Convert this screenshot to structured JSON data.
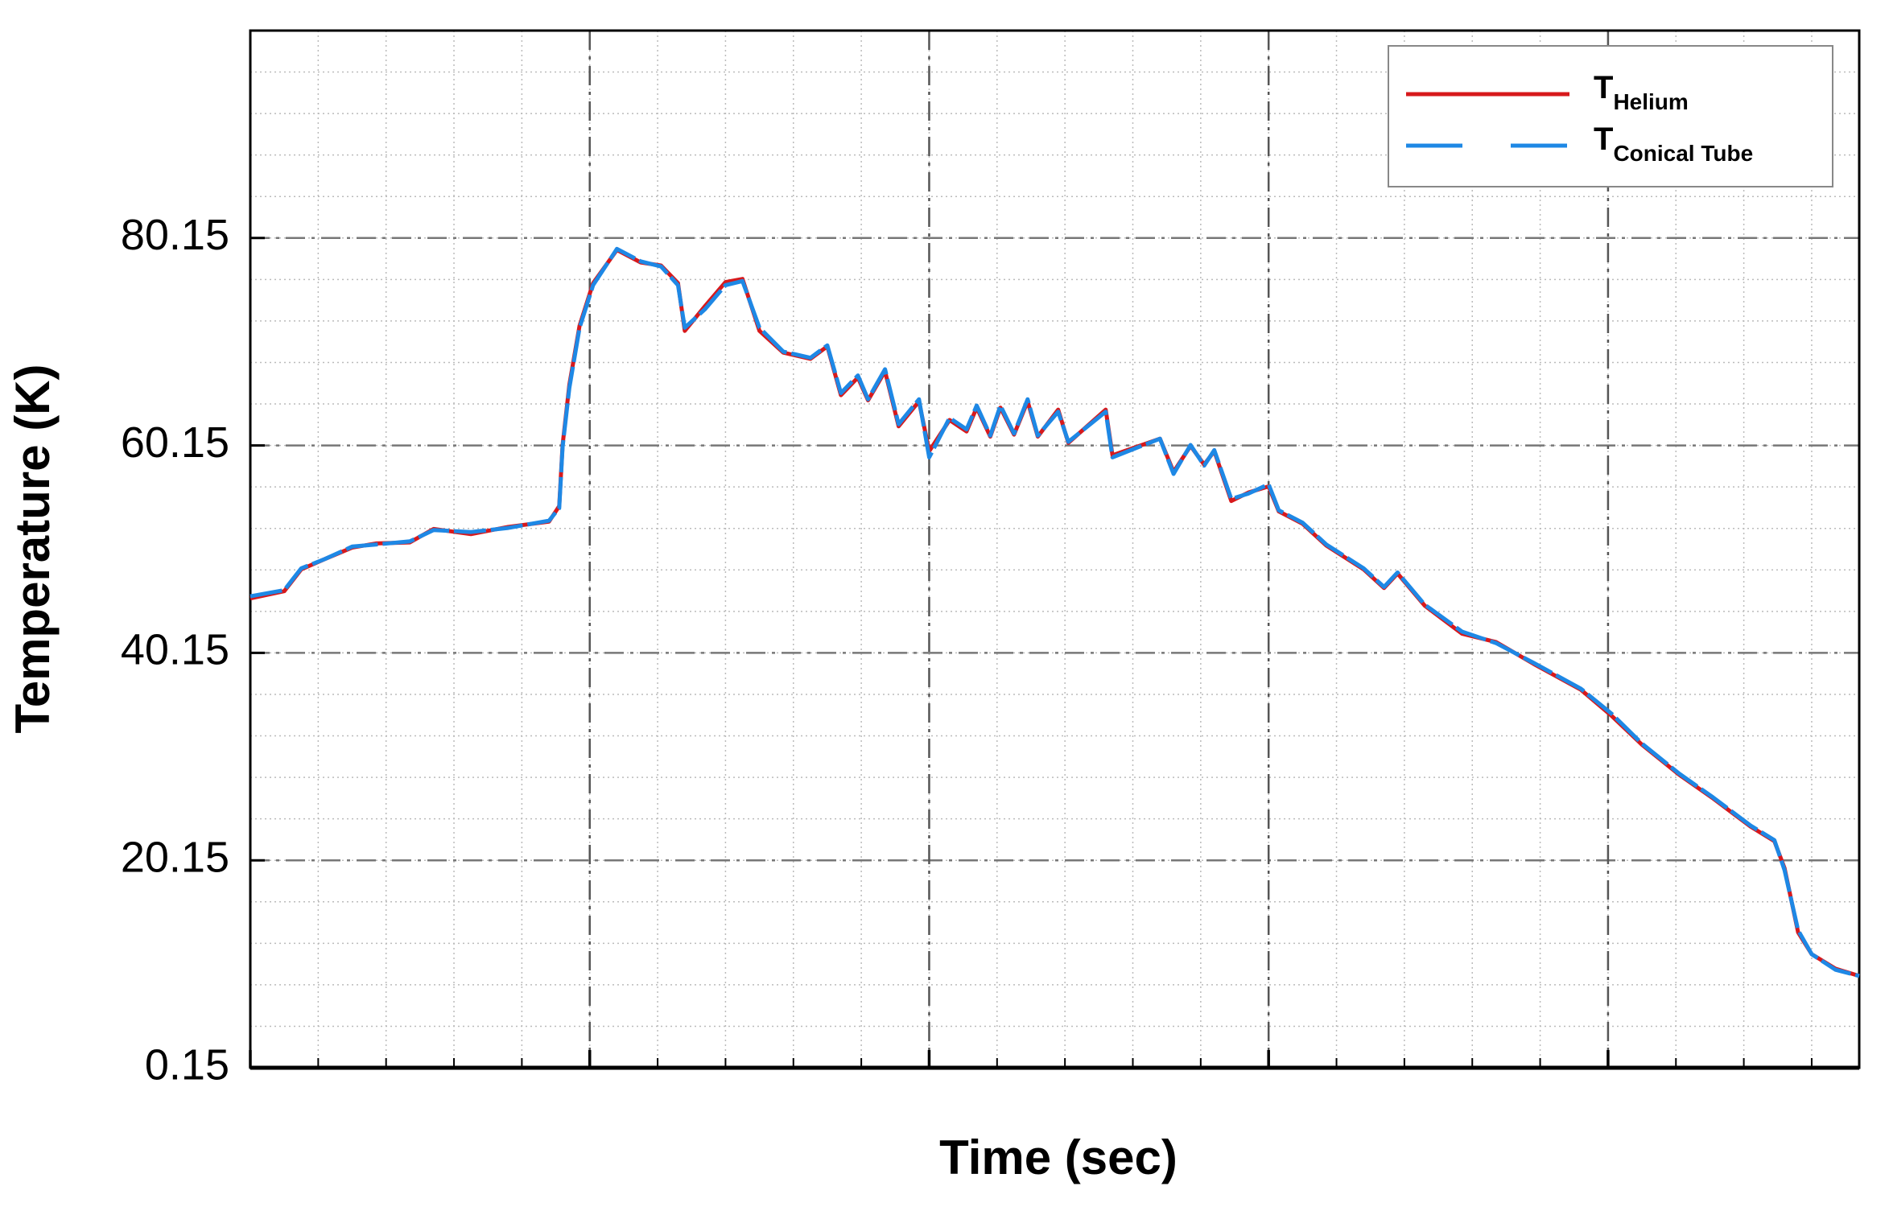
{
  "chart_data": {
    "type": "line",
    "x_label": "Time (sec)",
    "y_label": "Temperature (K)",
    "xlim": [
      0,
      4.74
    ],
    "xticks": [
      0,
      1,
      2,
      3,
      4
    ],
    "ylim": [
      0.15,
      100.15
    ],
    "yticks": [
      0.15,
      20.15,
      40.15,
      60.15,
      80.15
    ],
    "grid": true,
    "legend": "upper right",
    "x": [
      0,
      0.1,
      0.15,
      0.22,
      0.3,
      0.37,
      0.47,
      0.54,
      0.65,
      0.76,
      0.88,
      0.91,
      0.92,
      0.94,
      0.97,
      1.01,
      1.08,
      1.15,
      1.21,
      1.26,
      1.28,
      1.34,
      1.4,
      1.45,
      1.5,
      1.57,
      1.65,
      1.7,
      1.74,
      1.79,
      1.82,
      1.87,
      1.91,
      1.97,
      2.0,
      2.06,
      2.11,
      2.14,
      2.18,
      2.21,
      2.25,
      2.29,
      2.32,
      2.38,
      2.41,
      2.52,
      2.54,
      2.68,
      2.72,
      2.77,
      2.81,
      2.84,
      2.89,
      2.94,
      3.0,
      3.03,
      3.1,
      3.17,
      3.28,
      3.34,
      3.38,
      3.46,
      3.57,
      3.67,
      3.78,
      3.92,
      4.01,
      4.1,
      4.21,
      4.31,
      4.42,
      4.49,
      4.52,
      4.56,
      4.6,
      4.67,
      4.74
    ],
    "series": [
      {
        "name": "T",
        "subscript": "Helium",
        "color": "#d7191c",
        "dash": false,
        "values": [
          45.4,
          46.1,
          48.2,
          49.2,
          50.3,
          50.7,
          50.8,
          52.1,
          51.6,
          52.3,
          52.8,
          54.3,
          60.2,
          66.0,
          71.7,
          75.8,
          79.0,
          77.8,
          77.5,
          75.8,
          71.2,
          73.6,
          75.9,
          76.2,
          71.2,
          69.1,
          68.5,
          69.7,
          65.0,
          66.7,
          64.5,
          67.3,
          62.0,
          64.4,
          59.6,
          62.6,
          61.5,
          63.8,
          61.0,
          63.8,
          61.2,
          64.4,
          61.0,
          63.6,
          60.4,
          63.6,
          59.2,
          60.8,
          57.6,
          60.1,
          58.3,
          59.6,
          54.8,
          55.6,
          56.2,
          53.8,
          52.6,
          50.5,
          48.2,
          46.4,
          47.8,
          44.7,
          42.0,
          41.2,
          39.1,
          36.6,
          34.1,
          31.3,
          28.4,
          26.1,
          23.4,
          22.0,
          19.4,
          13.2,
          11.1,
          9.7,
          9.0
        ]
      },
      {
        "name": "T",
        "subscript": "Conical Tube",
        "color": "#1e88e5",
        "dash": true,
        "values": [
          45.6,
          46.2,
          48.3,
          49.2,
          50.4,
          50.6,
          50.9,
          52.0,
          51.8,
          52.2,
          52.9,
          54.1,
          60.0,
          65.7,
          71.5,
          75.6,
          79.1,
          77.9,
          77.4,
          75.6,
          71.5,
          73.3,
          75.6,
          76.0,
          71.5,
          69.2,
          68.6,
          69.8,
          65.2,
          66.9,
          64.6,
          67.5,
          62.2,
          64.6,
          59.0,
          62.8,
          61.7,
          64.0,
          61.1,
          64.0,
          61.3,
          64.6,
          61.1,
          63.4,
          60.5,
          63.4,
          59.0,
          60.8,
          57.4,
          60.2,
          58.2,
          59.7,
          55.0,
          55.5,
          56.4,
          53.9,
          52.7,
          50.6,
          48.3,
          46.5,
          47.9,
          44.8,
          42.2,
          41.1,
          39.2,
          36.7,
          34.3,
          31.4,
          28.5,
          26.2,
          23.5,
          22.1,
          19.2,
          13.4,
          11.1,
          9.6,
          9.0
        ]
      }
    ]
  }
}
